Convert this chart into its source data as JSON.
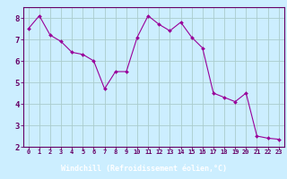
{
  "x": [
    0,
    1,
    2,
    3,
    4,
    5,
    6,
    7,
    8,
    9,
    10,
    11,
    12,
    13,
    14,
    15,
    16,
    17,
    18,
    19,
    20,
    21,
    22,
    23
  ],
  "y": [
    7.5,
    8.1,
    7.2,
    6.9,
    6.4,
    6.3,
    6.0,
    4.7,
    5.5,
    5.5,
    7.1,
    8.1,
    7.7,
    7.4,
    7.8,
    7.1,
    6.6,
    4.5,
    4.3,
    4.1,
    4.5,
    2.5,
    2.4,
    2.35
  ],
  "line_color": "#990099",
  "marker": "D",
  "marker_size": 2,
  "bg_color": "#cceeff",
  "grid_color": "#aacccc",
  "xlim": [
    -0.5,
    23.5
  ],
  "ylim": [
    2.0,
    8.5
  ],
  "xtick_labels": [
    "0",
    "1",
    "2",
    "3",
    "4",
    "5",
    "6",
    "7",
    "8",
    "9",
    "10",
    "11",
    "12",
    "13",
    "14",
    "15",
    "16",
    "17",
    "18",
    "19",
    "20",
    "21",
    "22",
    "23"
  ],
  "ytick_values": [
    2,
    3,
    4,
    5,
    6,
    7,
    8
  ],
  "tick_color": "#660066",
  "spine_color": "#660066",
  "xlabel": "Windchill (Refroidissement éolien,°C)",
  "xlabel_bg": "#660066",
  "xlabel_fg": "#ffffff",
  "xlabel_fontsize": 6.0,
  "xtick_fontsize": 5.0,
  "ytick_fontsize": 6.5
}
